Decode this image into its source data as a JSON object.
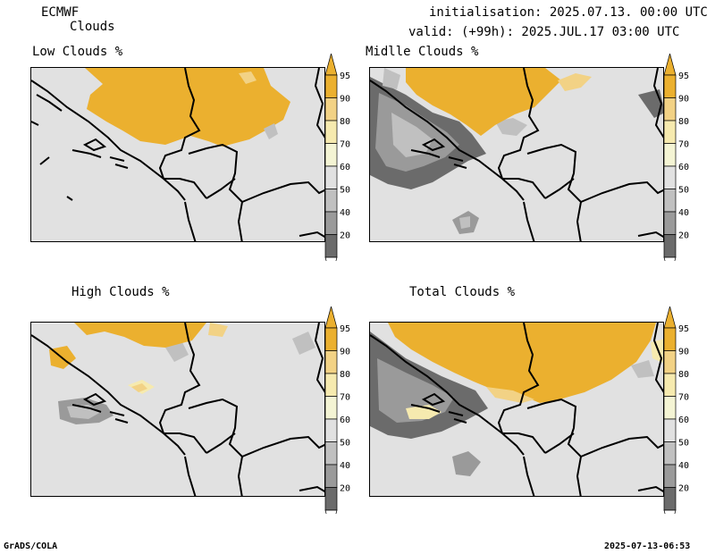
{
  "header": {
    "model": "ECMWF",
    "product": "Clouds",
    "initialisation": "initialisation: 2025.07.13. 00:00 UTC",
    "valid": "valid: (+99h): 2025.JUL.17 03:00 UTC"
  },
  "footer": {
    "left": "GrADS/COLA",
    "right": "2025-07-13-06:53"
  },
  "colors": {
    "background": "#e1e1e1",
    "c95": "#ebb02f",
    "c90": "#f2d285",
    "c80": "#f6eaaf",
    "c70": "#f4f4d4",
    "c60": "#e1e1e1",
    "c50": "#c0c0c0",
    "c40": "#9a9a9a",
    "c20": "#6b6b6b",
    "border": "#000000"
  },
  "panels": [
    {
      "title": "Low Clouds %"
    },
    {
      "title": "Midlle Clouds %"
    },
    {
      "title": "High Clouds %"
    },
    {
      "title": "Total Clouds %"
    }
  ],
  "colorbar": {
    "labels": [
      "95",
      "90",
      "80",
      "70",
      "60",
      "50",
      "40",
      "20"
    ]
  }
}
